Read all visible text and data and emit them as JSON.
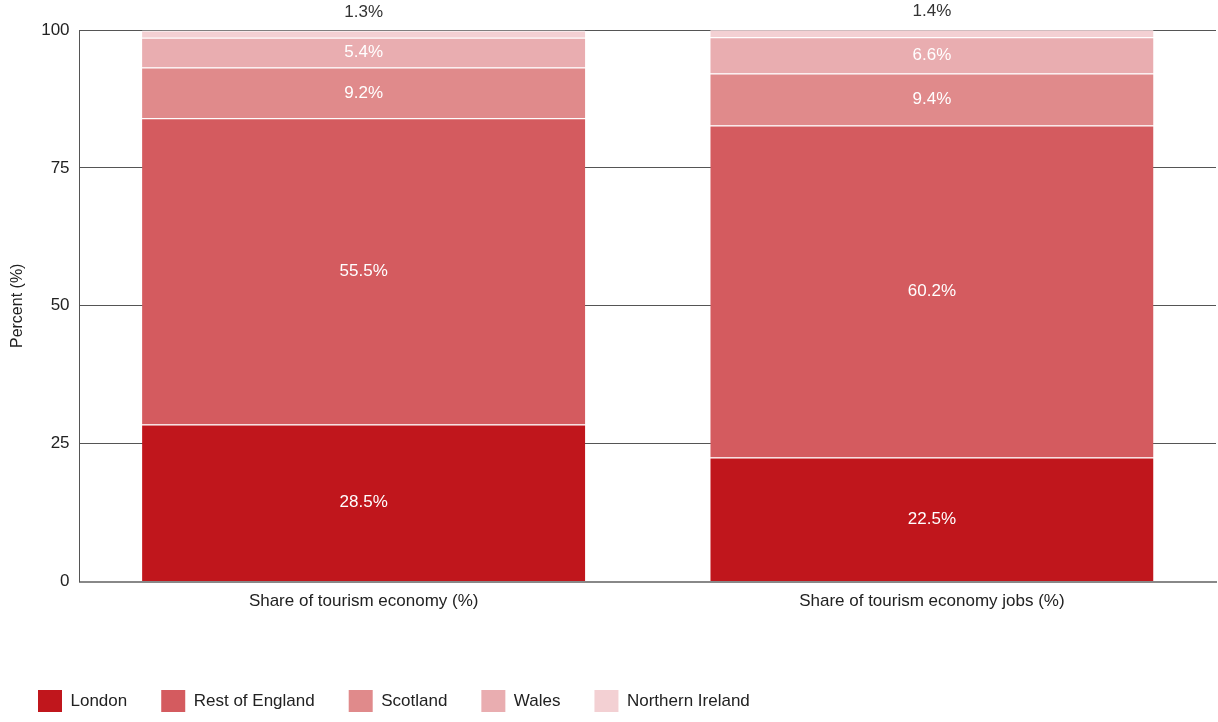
{
  "chart_data": {
    "type": "bar",
    "stacked": true,
    "ylabel": "Percent (%)",
    "categories": [
      "Share of tourism economy (%)",
      "Share of tourism economy jobs (%)"
    ],
    "series": [
      {
        "name": "London",
        "color": "#c0161c",
        "values": [
          28.5,
          22.5
        ],
        "value_labels": [
          "28.5%",
          "22.5%"
        ]
      },
      {
        "name": "Rest of England",
        "color": "#d45b5f",
        "values": [
          55.5,
          60.2
        ],
        "value_labels": [
          "55.5%",
          "60.2%"
        ]
      },
      {
        "name": "Scotland",
        "color": "#e08a8b",
        "values": [
          9.2,
          9.4
        ],
        "value_labels": [
          "9.2%",
          "9.4%"
        ]
      },
      {
        "name": "Wales",
        "color": "#e9adb0",
        "values": [
          5.4,
          6.6
        ],
        "value_labels": [
          "5.4%",
          "6.6%"
        ]
      },
      {
        "name": "Northern Ireland",
        "color": "#f3d0d3",
        "values": [
          1.3,
          1.4
        ],
        "value_labels": [
          "1.3%",
          "1.4%"
        ]
      }
    ],
    "ylim": [
      0,
      100
    ],
    "yticks": [
      0,
      25,
      50,
      75,
      100
    ],
    "grid": "y",
    "legend": "bottom left"
  }
}
